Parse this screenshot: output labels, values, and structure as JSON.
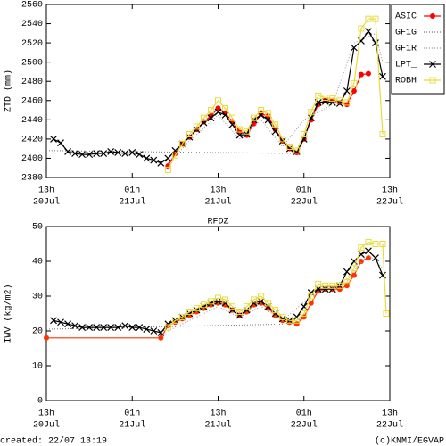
{
  "chart_data": [
    {
      "type": "line",
      "ylabel": "ZTD (mm)",
      "legend": "right",
      "xlim": [
        0,
        48
      ],
      "ylim": [
        2380,
        2560
      ],
      "xticks": [
        {
          "value": 0,
          "label": "13h",
          "date": "20Jul"
        },
        {
          "value": 12,
          "label": "01h",
          "date": "21Jul"
        },
        {
          "value": 24,
          "label": "13h",
          "date": "21Jul"
        },
        {
          "value": 36,
          "label": "01h",
          "date": "22Jul"
        },
        {
          "value": 48,
          "label": "13h",
          "date": "22Jul"
        }
      ],
      "yticks": [
        2380,
        2400,
        2420,
        2440,
        2460,
        2480,
        2500,
        2520,
        2540,
        2560
      ],
      "series": [
        {
          "name": "ASIC",
          "color": "#ff0000",
          "marker": "circle",
          "dash": "solid",
          "x": [
            17,
            18,
            19,
            20,
            21,
            22,
            23,
            24,
            25,
            26,
            27,
            28,
            29,
            30,
            31,
            32,
            33,
            34,
            35,
            36,
            37,
            38,
            39,
            40,
            41,
            42,
            43,
            44,
            45
          ],
          "values": [
            2392,
            2405,
            2415,
            2422,
            2430,
            2438,
            2444,
            2452,
            2447,
            2438,
            2428,
            2424,
            2436,
            2446,
            2444,
            2430,
            2418,
            2410,
            2406,
            2420,
            2440,
            2456,
            2460,
            2460,
            2458,
            2456,
            2470,
            2487,
            2488
          ]
        },
        {
          "name": "GF1G",
          "color": "#777777",
          "marker": "none",
          "dash": "dotted",
          "x": [
            0,
            35
          ],
          "values": [
            2408,
            2405
          ]
        },
        {
          "name": "GF1R",
          "color": "#999999",
          "marker": "none",
          "dash": "dotted",
          "x": [
            17,
            20,
            24,
            27,
            30,
            33,
            36,
            40,
            43,
            46,
            47
          ],
          "values": [
            2395,
            2418,
            2445,
            2420,
            2440,
            2412,
            2440,
            2456,
            2520,
            2530,
            2500
          ]
        },
        {
          "name": "LPT_",
          "color": "#000000",
          "marker": "cross",
          "dash": "solid",
          "x": [
            1,
            2,
            3,
            4,
            5,
            6,
            7,
            8,
            9,
            10,
            11,
            12,
            13,
            14,
            15,
            16,
            17,
            18,
            19,
            20,
            21,
            22,
            23,
            24,
            25,
            26,
            27,
            28,
            29,
            30,
            31,
            32,
            33,
            34,
            35,
            36,
            37,
            38,
            39,
            40,
            41,
            42,
            43,
            44,
            45,
            46,
            47
          ],
          "values": [
            2420,
            2416,
            2407,
            2405,
            2404,
            2404,
            2405,
            2405,
            2407,
            2406,
            2405,
            2406,
            2404,
            2400,
            2398,
            2395,
            2400,
            2408,
            2415,
            2422,
            2430,
            2437,
            2442,
            2448,
            2445,
            2435,
            2424,
            2425,
            2440,
            2445,
            2440,
            2428,
            2418,
            2410,
            2407,
            2420,
            2442,
            2458,
            2459,
            2458,
            2457,
            2470,
            2515,
            2522,
            2532,
            2520,
            2485
          ]
        },
        {
          "name": "ROBH",
          "color": "#e8dc3c",
          "marker": "square",
          "dash": "solid",
          "x": [
            17,
            18,
            19,
            20,
            21,
            22,
            23,
            24,
            25,
            26,
            27,
            28,
            29,
            30,
            31,
            32,
            33,
            34,
            35,
            36,
            37,
            38,
            39,
            40,
            41,
            42,
            43,
            44,
            45,
            46,
            47
          ],
          "values": [
            2388,
            2403,
            2415,
            2425,
            2433,
            2442,
            2450,
            2460,
            2452,
            2442,
            2430,
            2428,
            2442,
            2450,
            2447,
            2435,
            2420,
            2412,
            2408,
            2425,
            2448,
            2465,
            2463,
            2462,
            2460,
            2458,
            2478,
            2535,
            2545,
            2545,
            2425
          ]
        }
      ]
    },
    {
      "type": "line",
      "title": "RFDZ",
      "ylabel": "IWV (kg/m2)",
      "xlim": [
        0,
        48
      ],
      "ylim": [
        0,
        50
      ],
      "xticks": [
        {
          "value": 0,
          "label": "13h",
          "date": "20Jul"
        },
        {
          "value": 12,
          "label": "01h",
          "date": "21Jul"
        },
        {
          "value": 24,
          "label": "13h",
          "date": "21Jul"
        },
        {
          "value": 36,
          "label": "01h",
          "date": "22Jul"
        },
        {
          "value": 48,
          "label": "13h",
          "date": "22Jul"
        }
      ],
      "yticks": [
        0,
        10,
        20,
        30,
        40,
        50
      ],
      "series": [
        {
          "name": "ASIC",
          "color": "#ff3300",
          "marker": "circle",
          "dash": "solid",
          "x": [
            0,
            16,
            17,
            18,
            19,
            20,
            21,
            22,
            23,
            24,
            25,
            26,
            27,
            28,
            29,
            30,
            31,
            32,
            33,
            34,
            35,
            36,
            37,
            38,
            39,
            40,
            41,
            42,
            43,
            44,
            45
          ],
          "values": [
            18,
            18,
            21.5,
            22.5,
            23.5,
            24.5,
            25.5,
            26.5,
            27.5,
            28,
            27.5,
            26,
            24.5,
            25.5,
            27.5,
            28,
            26.5,
            24.5,
            23,
            22.5,
            22,
            24,
            28,
            31.5,
            32,
            32,
            32,
            33,
            36,
            40,
            41
          ]
        },
        {
          "name": "GF1G",
          "color": "#777777",
          "marker": "none",
          "dash": "dotted",
          "x": [
            0,
            34
          ],
          "values": [
            20.5,
            22
          ]
        },
        {
          "name": "GF1R",
          "color": "#999999",
          "marker": "none",
          "dash": "dotted",
          "x": [
            17,
            24,
            27,
            30,
            33,
            37,
            42,
            45,
            47
          ],
          "values": [
            20,
            27,
            24,
            27,
            23,
            30,
            35,
            42,
            38
          ]
        },
        {
          "name": "LPT_",
          "color": "#000000",
          "marker": "cross",
          "dash": "solid",
          "x": [
            1,
            2,
            3,
            4,
            5,
            6,
            7,
            8,
            9,
            10,
            11,
            12,
            13,
            14,
            15,
            16,
            17,
            18,
            19,
            20,
            21,
            22,
            23,
            24,
            25,
            26,
            27,
            28,
            29,
            30,
            31,
            32,
            33,
            34,
            35,
            36,
            37,
            38,
            39,
            40,
            41,
            42,
            43,
            44,
            45,
            46,
            47
          ],
          "values": [
            23,
            22.5,
            22,
            21.5,
            21,
            21,
            21,
            21,
            21,
            21,
            21.5,
            21,
            21,
            20.5,
            20,
            19.5,
            22,
            23,
            24,
            25,
            26,
            27,
            28,
            28.5,
            28,
            26,
            24.5,
            26,
            28,
            28.5,
            27,
            25,
            23.5,
            23,
            24,
            27,
            31,
            32,
            32,
            32,
            33,
            37,
            40,
            42,
            43,
            41,
            36
          ]
        },
        {
          "name": "ROBH",
          "color": "#e8dc3c",
          "marker": "square",
          "dash": "solid",
          "x": [
            17,
            18,
            19,
            20,
            21,
            22,
            23,
            24,
            25,
            26,
            27,
            28,
            29,
            30,
            31,
            32,
            33,
            34,
            35,
            36,
            37,
            38,
            39,
            40,
            41,
            42,
            43,
            44,
            45,
            46,
            47,
            47.5
          ],
          "values": [
            21,
            23,
            24,
            25.5,
            26.5,
            27.5,
            28.5,
            29.5,
            29,
            27,
            25.5,
            27,
            29,
            30,
            28,
            26,
            24,
            23,
            23,
            25,
            30,
            33.5,
            33,
            33,
            33,
            34,
            38,
            44,
            45.5,
            45,
            45,
            25
          ]
        }
      ]
    }
  ],
  "footer": {
    "left": "created: 22/07 13:19",
    "right": "(c)KNMI/EGVAP"
  }
}
